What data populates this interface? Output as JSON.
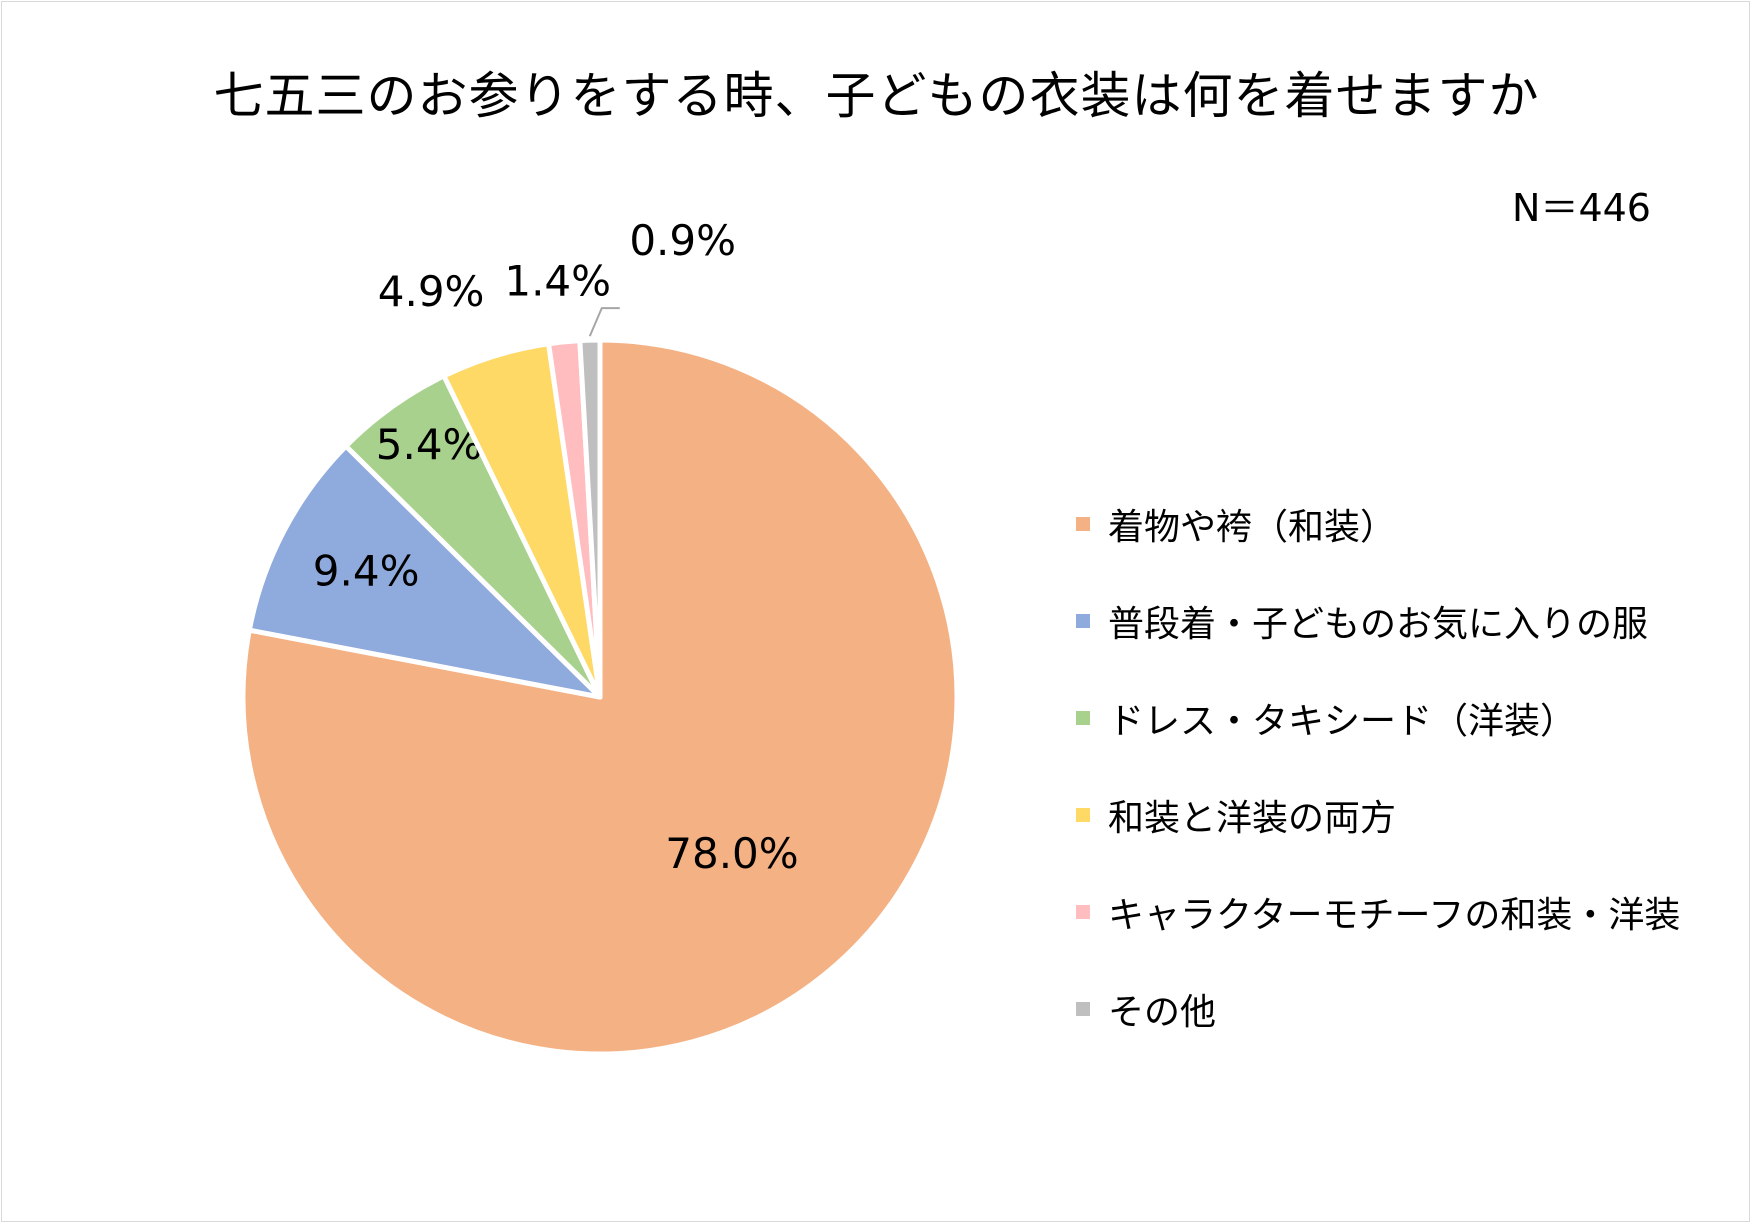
{
  "chart_data": {
    "type": "pie",
    "title": "七五三のお参りをする時、子どもの衣装は何を着せますか",
    "sample_size": "N＝446",
    "legend_position": "right",
    "slices": [
      {
        "name": "着物や袴（和装）",
        "value": 78.0,
        "label": "78.0%",
        "color": "#F4B183"
      },
      {
        "name": "普段着・子どものお気に入りの服",
        "value": 9.4,
        "label": "9.4%",
        "color": "#8FAADC"
      },
      {
        "name": "ドレス・タキシード（洋装）",
        "value": 5.4,
        "label": "5.4%",
        "color": "#A9D18E"
      },
      {
        "name": "和装と洋装の両方",
        "value": 4.9,
        "label": "4.9%",
        "color": "#FFD966"
      },
      {
        "name": "キャラクターモチーフの和装・洋装",
        "value": 1.4,
        "label": "1.4%",
        "color": "#FFBDC0"
      },
      {
        "name": "その他",
        "value": 0.9,
        "label": "0.9%",
        "color": "#BFBFBF"
      }
    ]
  }
}
